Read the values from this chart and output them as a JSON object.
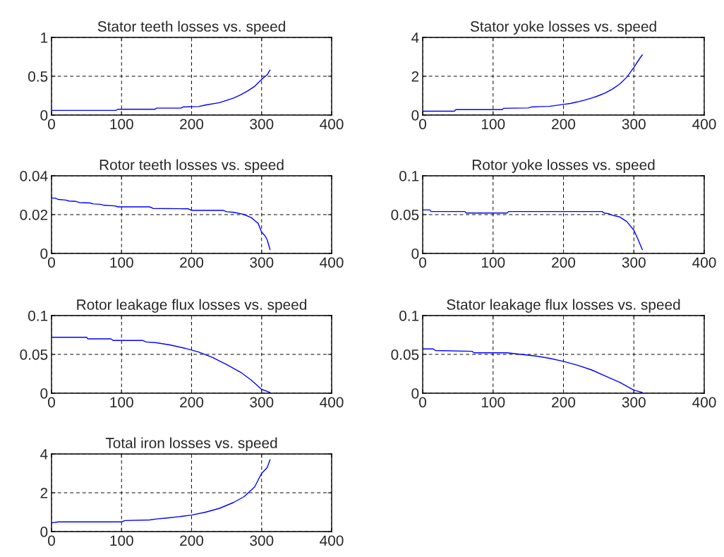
{
  "chart_data": [
    {
      "type": "line",
      "title": "Stator teeth losses vs. speed",
      "xlim": [
        0,
        400
      ],
      "xticks": [
        0,
        100,
        200,
        300,
        400
      ],
      "ylim": [
        0,
        1
      ],
      "yticks": [
        0,
        0.5,
        1
      ],
      "grid": true,
      "series": [
        {
          "color": "#0000ff",
          "x": [
            0,
            92,
            95,
            148,
            150,
            185,
            188,
            210,
            220,
            240,
            250,
            260,
            270,
            280,
            290,
            300,
            308,
            312
          ],
          "values": [
            0.06,
            0.06,
            0.075,
            0.075,
            0.09,
            0.09,
            0.105,
            0.11,
            0.13,
            0.16,
            0.19,
            0.22,
            0.26,
            0.31,
            0.37,
            0.46,
            0.52,
            0.58
          ]
        }
      ]
    },
    {
      "type": "line",
      "title": "Stator yoke losses vs. speed",
      "xlim": [
        0,
        400
      ],
      "xticks": [
        0,
        100,
        200,
        300,
        400
      ],
      "ylim": [
        0,
        4
      ],
      "yticks": [
        0,
        2,
        4
      ],
      "grid": true,
      "series": [
        {
          "color": "#0000ff",
          "x": [
            0,
            45,
            47,
            113,
            115,
            150,
            155,
            180,
            200,
            210,
            220,
            230,
            240,
            250,
            260,
            270,
            280,
            290,
            300,
            308,
            312
          ],
          "values": [
            0.2,
            0.2,
            0.28,
            0.28,
            0.35,
            0.37,
            0.42,
            0.45,
            0.55,
            0.6,
            0.68,
            0.77,
            0.88,
            1.0,
            1.15,
            1.35,
            1.6,
            1.95,
            2.45,
            2.9,
            3.1
          ]
        }
      ]
    },
    {
      "type": "line",
      "title": "Rotor teeth losses vs. speed",
      "xlim": [
        0,
        400
      ],
      "xticks": [
        0,
        100,
        200,
        300,
        400
      ],
      "ylim": [
        0,
        0.04
      ],
      "yticks": [
        0,
        0.02,
        0.04
      ],
      "grid": true,
      "series": [
        {
          "color": "#0000ff",
          "x": [
            0,
            5,
            10,
            20,
            25,
            35,
            40,
            55,
            60,
            70,
            75,
            90,
            95,
            140,
            145,
            195,
            200,
            245,
            250,
            260,
            270,
            275,
            285,
            290,
            295,
            300,
            305,
            308,
            312
          ],
          "values": [
            0.0285,
            0.0285,
            0.0278,
            0.0275,
            0.027,
            0.0268,
            0.0262,
            0.026,
            0.0255,
            0.0253,
            0.0248,
            0.0245,
            0.024,
            0.024,
            0.0232,
            0.023,
            0.0222,
            0.0222,
            0.0215,
            0.0212,
            0.0205,
            0.02,
            0.0185,
            0.017,
            0.0155,
            0.011,
            0.009,
            0.007,
            0.002
          ]
        }
      ]
    },
    {
      "type": "line",
      "title": "Rotor yoke losses vs. speed",
      "xlim": [
        0,
        400
      ],
      "xticks": [
        0,
        100,
        200,
        300,
        400
      ],
      "ylim": [
        0,
        0.1
      ],
      "yticks": [
        0,
        0.05,
        0.1
      ],
      "grid": true,
      "series": [
        {
          "color": "#0000ff",
          "x": [
            0,
            10,
            12,
            60,
            62,
            120,
            122,
            255,
            258,
            265,
            270,
            280,
            290,
            300,
            305,
            312
          ],
          "values": [
            0.056,
            0.056,
            0.054,
            0.054,
            0.052,
            0.052,
            0.054,
            0.054,
            0.052,
            0.051,
            0.049,
            0.047,
            0.041,
            0.03,
            0.02,
            0.005
          ]
        }
      ]
    },
    {
      "type": "line",
      "title": "Rotor leakage flux losses vs. speed",
      "xlim": [
        0,
        400
      ],
      "xticks": [
        0,
        100,
        200,
        300,
        400
      ],
      "ylim": [
        0,
        0.1
      ],
      "yticks": [
        0,
        0.05,
        0.1
      ],
      "grid": true,
      "series": [
        {
          "color": "#0000ff",
          "x": [
            0,
            50,
            52,
            85,
            88,
            130,
            135,
            150,
            170,
            190,
            210,
            230,
            250,
            270,
            285,
            300,
            312
          ],
          "values": [
            0.072,
            0.072,
            0.07,
            0.07,
            0.068,
            0.068,
            0.066,
            0.065,
            0.062,
            0.058,
            0.053,
            0.046,
            0.037,
            0.027,
            0.017,
            0.005,
            0.001
          ]
        }
      ]
    },
    {
      "type": "line",
      "title": "Stator leakage flux losses vs. speed",
      "xlim": [
        0,
        400
      ],
      "xticks": [
        0,
        100,
        200,
        300,
        400
      ],
      "ylim": [
        0,
        0.1
      ],
      "yticks": [
        0,
        0.05,
        0.1
      ],
      "grid": true,
      "series": [
        {
          "color": "#0000ff",
          "x": [
            0,
            15,
            18,
            70,
            73,
            120,
            140,
            160,
            180,
            200,
            220,
            240,
            260,
            280,
            300,
            312
          ],
          "values": [
            0.057,
            0.057,
            0.055,
            0.054,
            0.052,
            0.052,
            0.05,
            0.048,
            0.045,
            0.041,
            0.036,
            0.03,
            0.022,
            0.014,
            0.004,
            0.001
          ]
        }
      ]
    },
    {
      "type": "line",
      "title": "Total iron losses vs. speed",
      "xlim": [
        0,
        400
      ],
      "xticks": [
        0,
        100,
        200,
        300,
        400
      ],
      "ylim": [
        0,
        4
      ],
      "yticks": [
        0,
        2,
        4
      ],
      "grid": true,
      "series": [
        {
          "color": "#0000ff",
          "x": [
            0,
            10,
            100,
            105,
            140,
            150,
            165,
            185,
            200,
            220,
            240,
            260,
            275,
            290,
            300,
            308,
            312
          ],
          "values": [
            0.45,
            0.5,
            0.5,
            0.57,
            0.6,
            0.65,
            0.7,
            0.78,
            0.85,
            1.0,
            1.2,
            1.5,
            1.8,
            2.3,
            3.0,
            3.3,
            3.7
          ]
        }
      ]
    }
  ]
}
